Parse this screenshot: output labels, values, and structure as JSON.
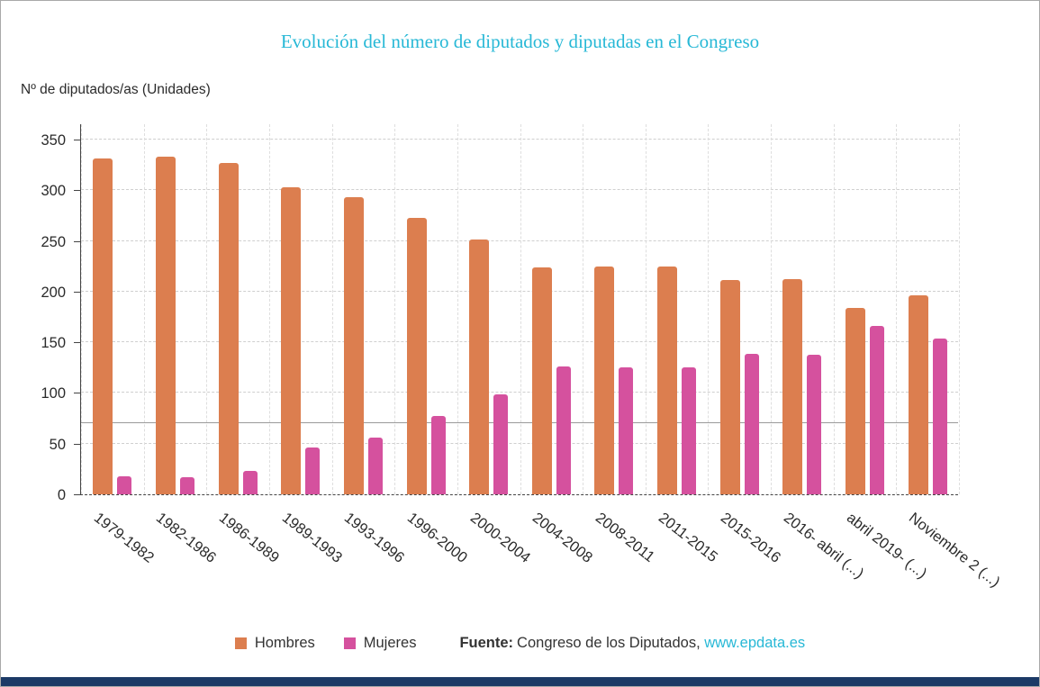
{
  "chart_data": {
    "type": "bar",
    "title": "Evolución del número de diputados y diputadas en el Congreso",
    "ylabel": "Nº de diputados/as (Unidades)",
    "xlabel": "",
    "categories": [
      "1979-1982",
      "1982-1986",
      "1986-1989",
      "1989-1993",
      "1993-1996",
      "1996-2000",
      "2000-2004",
      "2004-2008",
      "2008-2011",
      "2011-2015",
      "2015-2016",
      "2016- abril (...)",
      "abril 2019- (...)",
      "Noviembre 2 (...)"
    ],
    "series": [
      {
        "name": "Hombres",
        "color": "#DC7E4F",
        "values": [
          331,
          333,
          327,
          303,
          293,
          273,
          251,
          224,
          225,
          225,
          211,
          212,
          184,
          196
        ]
      },
      {
        "name": "Mujeres",
        "color": "#D5519E",
        "values": [
          18,
          17,
          23,
          46,
          56,
          77,
          99,
          126,
          125,
          125,
          139,
          138,
          166,
          154
        ]
      }
    ],
    "ylim": [
      0,
      350
    ],
    "ytick_step": 50,
    "reference_line": 70,
    "grid": true,
    "legend_position": "bottom"
  },
  "source": {
    "label": "Fuente:",
    "text": "Congreso de los Diputados,",
    "link": "www.epdata.es"
  },
  "colors": {
    "hombres": "#DC7E4F",
    "mujeres": "#D5519E",
    "title_accent": "#27B8D6",
    "link": "#27B8D6",
    "bottom_bar": "#1C3A66",
    "reference_line": "#9A9A9A"
  }
}
